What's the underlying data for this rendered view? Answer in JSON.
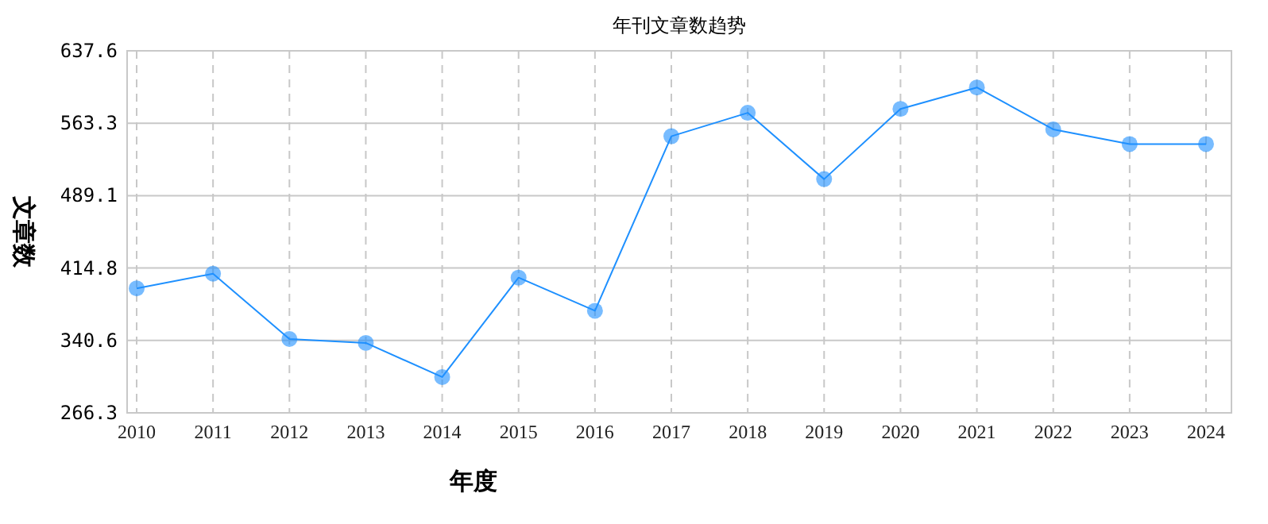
{
  "chart_data": {
    "type": "line",
    "title": "年刊文章数趋势",
    "xlabel": "年度",
    "ylabel": "文章数",
    "categories": [
      "2010",
      "2011",
      "2012",
      "2013",
      "2014",
      "2015",
      "2016",
      "2017",
      "2018",
      "2019",
      "2020",
      "2021",
      "2022",
      "2023",
      "2024"
    ],
    "series": [
      {
        "color": "#1e90ff",
        "values": [
          394,
          409,
          342,
          338,
          303,
          405,
          371,
          550,
          574,
          506,
          578,
          600,
          557,
          542,
          542
        ]
      }
    ],
    "ylim": [
      266.3,
      637.6
    ],
    "yticks": [
      266.3,
      340.6,
      414.8,
      489.1,
      563.3,
      637.6
    ],
    "grid": true,
    "marker": "circle",
    "line_style": "solid"
  }
}
